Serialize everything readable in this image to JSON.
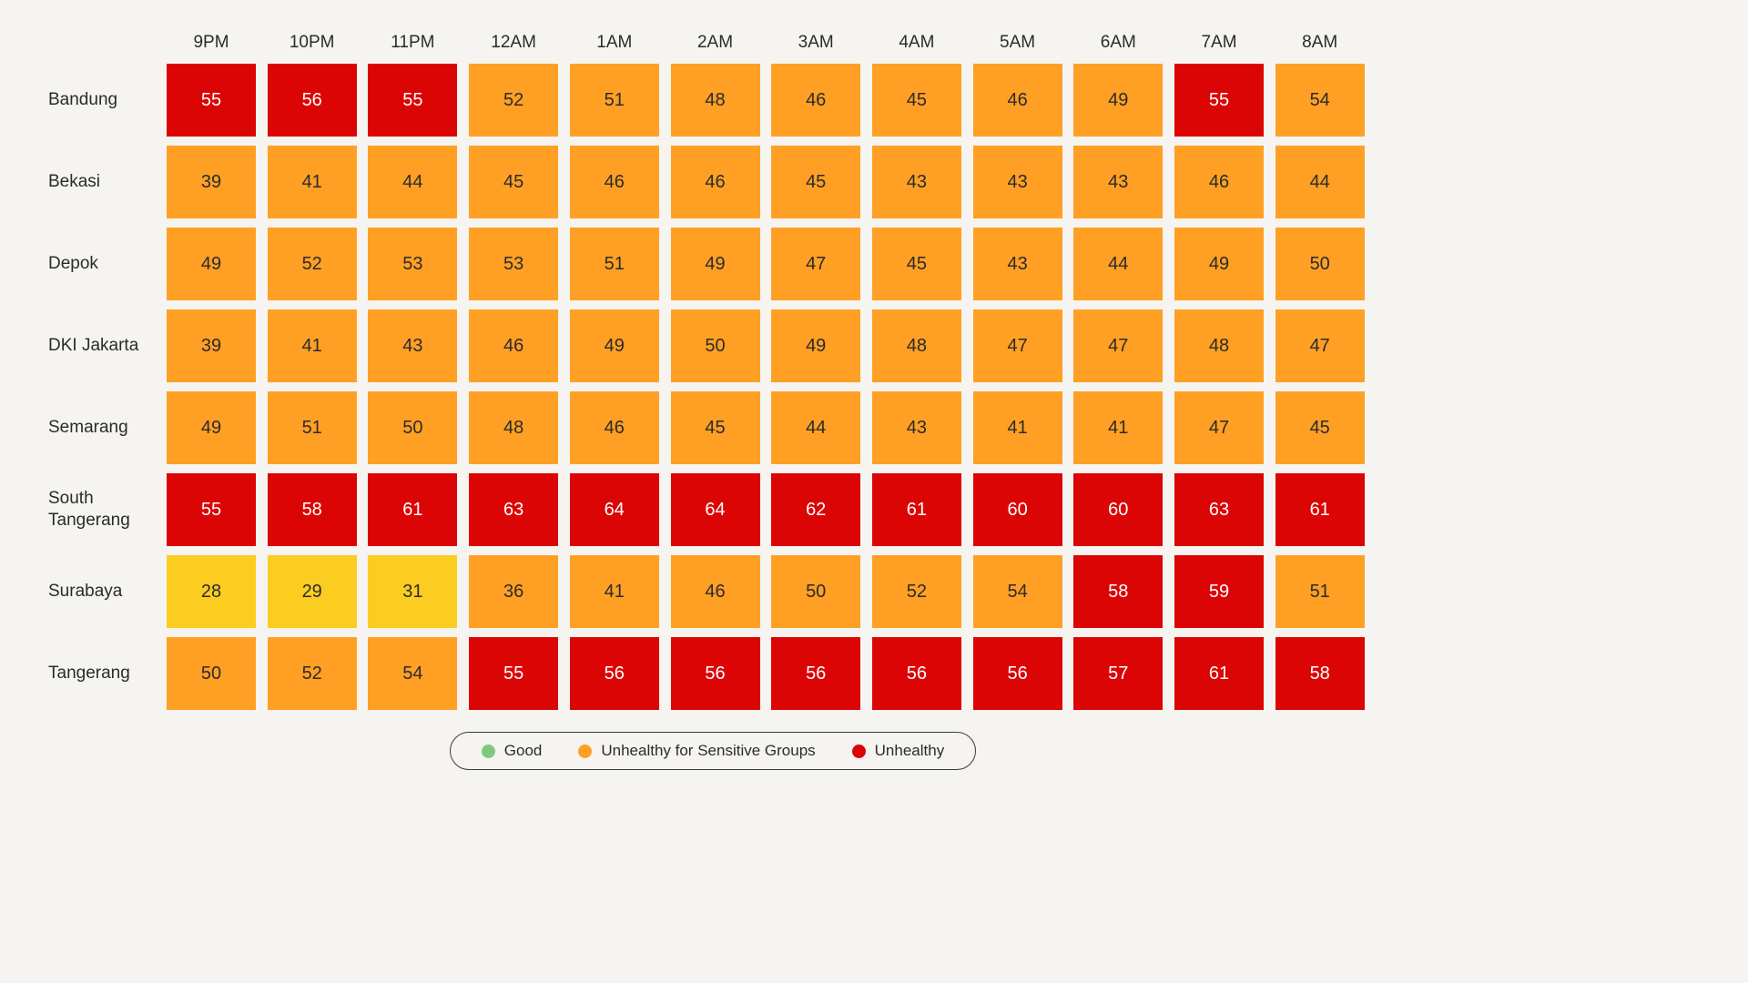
{
  "chart_data": {
    "type": "heatmap",
    "title": "",
    "xlabel": "",
    "ylabel": "",
    "columns": [
      "9PM",
      "10PM",
      "11PM",
      "12AM",
      "1AM",
      "2AM",
      "3AM",
      "4AM",
      "5AM",
      "6AM",
      "7AM",
      "8AM"
    ],
    "rows": [
      "Bandung",
      "Bekasi",
      "Depok",
      "DKI Jakarta",
      "Semarang",
      "South Tangerang",
      "Surabaya",
      "Tangerang"
    ],
    "values": [
      [
        55,
        56,
        55,
        52,
        51,
        48,
        46,
        45,
        46,
        49,
        55,
        54
      ],
      [
        39,
        41,
        44,
        45,
        46,
        46,
        45,
        43,
        43,
        43,
        46,
        44
      ],
      [
        49,
        52,
        53,
        53,
        51,
        49,
        47,
        45,
        43,
        44,
        49,
        50
      ],
      [
        39,
        41,
        43,
        46,
        49,
        50,
        49,
        48,
        47,
        47,
        48,
        47
      ],
      [
        49,
        51,
        50,
        48,
        46,
        45,
        44,
        43,
        41,
        41,
        47,
        45
      ],
      [
        55,
        58,
        61,
        63,
        64,
        64,
        62,
        61,
        60,
        60,
        63,
        61
      ],
      [
        28,
        29,
        31,
        36,
        41,
        46,
        50,
        52,
        54,
        58,
        59,
        51
      ],
      [
        50,
        52,
        54,
        55,
        56,
        56,
        56,
        56,
        56,
        57,
        61,
        58
      ]
    ],
    "categories_unshown_color": "#fccd21",
    "color_scale": [
      {
        "max": 35,
        "color": "#fccd21",
        "text_color": "#2b2b2b"
      },
      {
        "max": 54,
        "color": "#ffa024",
        "text_color": "#2b2b2b"
      },
      {
        "max": 999,
        "color": "#dc0505",
        "text_color": "#ffffff"
      }
    ],
    "legend": {
      "placement": "bottom-center",
      "items": [
        {
          "label": "Good",
          "color": "#7fc97f"
        },
        {
          "label": "Unhealthy for Sensitive Groups",
          "color": "#ffa024"
        },
        {
          "label": "Unhealthy",
          "color": "#dc0505"
        }
      ]
    }
  }
}
